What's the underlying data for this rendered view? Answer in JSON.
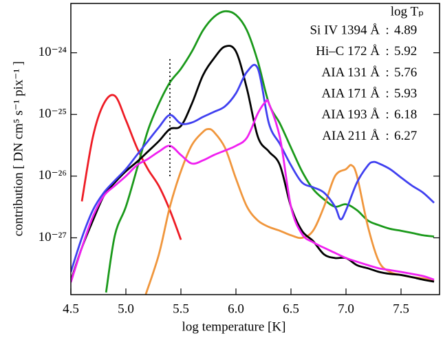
{
  "chart_data": {
    "type": "line",
    "x_label": "log temperature  [K]",
    "y_label": "contribution  [ DN cm⁵ s⁻¹ pix⁻¹ ]",
    "log_y": true,
    "xlim": [
      4.5,
      7.85
    ],
    "xticks": [
      {
        "value": 4.5,
        "label": "4.5"
      },
      {
        "value": 5,
        "label": "5.0"
      },
      {
        "value": 5.5,
        "label": "5.5"
      },
      {
        "value": 6,
        "label": "6.0"
      },
      {
        "value": 6.5,
        "label": "6.5"
      },
      {
        "value": 7,
        "label": "7.0"
      },
      {
        "value": 7.5,
        "label": "7.5"
      }
    ],
    "ylim": [
      1.2e-28,
      6.3e-24
    ],
    "yticks": [
      {
        "value": 1e-27,
        "label": "10⁻²⁷"
      },
      {
        "value": 1e-26,
        "label": "10⁻²⁶"
      },
      {
        "value": 1e-25,
        "label": "10⁻²⁵"
      },
      {
        "value": 1e-24,
        "label": "10⁻²⁴"
      }
    ],
    "legend_title": "log Tₚ",
    "legend_separator": ":",
    "legend_position": "upper right",
    "marker": {
      "x": 5.4,
      "y": [
        1e-26,
        8e-25
      ],
      "color": "#000"
    },
    "series": [
      {
        "name": "Si IV 1394 Å",
        "log_tp": 4.89,
        "color": "#ee1c25",
        "x": [
          4.6,
          4.7,
          4.8,
          4.9,
          5.0,
          5.1,
          5.2,
          5.3,
          5.4,
          5.5
        ],
        "values": [
          3.9e-27,
          4.3e-26,
          1.5e-25,
          2e-25,
          8.1e-26,
          2.9e-26,
          1.3e-26,
          6.9e-27,
          2.8e-27,
          9.3e-28
        ]
      },
      {
        "name": "Hi–C 172 Å",
        "log_tp": 5.92,
        "color": "#1a991a",
        "x": [
          4.82,
          4.9,
          5.0,
          5.1,
          5.2,
          5.3,
          5.4,
          5.5,
          5.6,
          5.7,
          5.8,
          5.9,
          6.0,
          6.1,
          6.2,
          6.3,
          6.4,
          6.5,
          6.6,
          6.7,
          6.8,
          6.9,
          7.0,
          7.1,
          7.2,
          7.3,
          7.4,
          7.5,
          7.6,
          7.7,
          7.8
        ],
        "values": [
          1.3e-28,
          1.1e-27,
          3.2e-27,
          1.3e-26,
          5.5e-26,
          1.5e-25,
          3.3e-25,
          5.5e-25,
          1.05e-24,
          2.3e-24,
          3.8e-24,
          4.7e-24,
          4.1e-24,
          2.3e-24,
          7.1e-25,
          1.5e-25,
          7.1e-26,
          2.9e-26,
          1.2e-26,
          6.2e-27,
          4.2e-27,
          3.2e-27,
          3.5e-27,
          2.8e-27,
          1.9e-27,
          1.6e-27,
          1.4e-27,
          1.3e-27,
          1.2e-27,
          1.1e-27,
          1.05e-27
        ]
      },
      {
        "name": "AIA 131 Å",
        "log_tp": 5.76,
        "color": "#f0963c",
        "x": [
          5.18,
          5.3,
          5.4,
          5.5,
          5.6,
          5.7,
          5.75,
          5.8,
          5.9,
          6.0,
          6.1,
          6.2,
          6.3,
          6.4,
          6.5,
          6.6,
          6.7,
          6.8,
          6.9,
          7.0,
          7.05,
          7.1,
          7.2,
          7.3,
          7.4,
          7.5,
          7.6,
          7.7,
          7.8
        ],
        "values": [
          1.2e-28,
          5.4e-28,
          3.2e-27,
          1.2e-26,
          3.2e-26,
          5.2e-26,
          5.8e-26,
          5.2e-26,
          2.9e-26,
          9.1e-27,
          3.2e-27,
          1.9e-27,
          1.5e-27,
          1.3e-27,
          1.1e-27,
          1e-27,
          1.3e-27,
          3.2e-27,
          1e-26,
          1.3e-26,
          1.5e-26,
          1e-26,
          1.5e-27,
          4.1e-28,
          2.8e-28,
          2.5e-28,
          2.3e-28,
          2.2e-28,
          2e-28
        ]
      },
      {
        "name": "AIA 171 Å",
        "log_tp": 5.93,
        "color": "#000000",
        "x": [
          4.5,
          4.6,
          4.7,
          4.8,
          4.9,
          5.0,
          5.1,
          5.2,
          5.3,
          5.4,
          5.5,
          5.6,
          5.7,
          5.8,
          5.9,
          6.0,
          6.1,
          6.2,
          6.3,
          6.4,
          6.5,
          6.6,
          6.7,
          6.8,
          6.9,
          7.0,
          7.1,
          7.2,
          7.3,
          7.4,
          7.5,
          7.6,
          7.7,
          7.8
        ],
        "values": [
          2e-28,
          6.9e-28,
          1.9e-27,
          4.8e-27,
          7.9e-27,
          1.2e-26,
          1.7e-26,
          2.5e-26,
          3.7e-26,
          5.8e-26,
          6.5e-26,
          1.5e-25,
          4.3e-25,
          8.1e-25,
          1.26e-24,
          1.05e-24,
          2.6e-25,
          4.3e-26,
          2.5e-26,
          1.5e-26,
          3.2e-27,
          1.3e-27,
          8.9e-28,
          5.4e-28,
          4.7e-28,
          4.7e-28,
          3.6e-28,
          3.2e-28,
          2.8e-28,
          2.6e-28,
          2.5e-28,
          2.3e-28,
          2.1e-28,
          1.95e-28
        ]
      },
      {
        "name": "AIA 193 Å",
        "log_tp": 6.18,
        "color": "#4040f0",
        "x": [
          4.5,
          4.6,
          4.7,
          4.8,
          4.9,
          5.0,
          5.1,
          5.2,
          5.3,
          5.4,
          5.5,
          5.6,
          5.7,
          5.8,
          5.9,
          6.0,
          6.1,
          6.2,
          6.3,
          6.4,
          6.5,
          6.6,
          6.7,
          6.8,
          6.9,
          6.95,
          7.0,
          7.1,
          7.2,
          7.25,
          7.3,
          7.4,
          7.5,
          7.6,
          7.7,
          7.8
        ],
        "values": [
          2.8e-28,
          1e-27,
          2.8e-27,
          5.4e-27,
          8.5e-27,
          1.3e-26,
          2.2e-26,
          3.7e-26,
          6.2e-26,
          9.8e-26,
          7.1e-26,
          7.4e-26,
          9.1e-26,
          1.1e-25,
          1.35e-25,
          2.2e-25,
          4.9e-25,
          5.5e-25,
          7.1e-26,
          3.3e-26,
          1.5e-26,
          7.9e-27,
          6.6e-27,
          5.4e-27,
          3.2e-27,
          2e-27,
          2.8e-27,
          7.9e-27,
          1.5e-26,
          1.7e-26,
          1.6e-26,
          1.3e-26,
          9.5e-27,
          7e-27,
          5.4e-27,
          3.7e-27
        ]
      },
      {
        "name": "AIA 211 Å",
        "log_tp": 6.27,
        "color": "#f020f0",
        "x": [
          4.5,
          4.6,
          4.7,
          4.8,
          4.9,
          5.0,
          5.1,
          5.2,
          5.3,
          5.4,
          5.5,
          5.6,
          5.7,
          5.8,
          5.9,
          6.0,
          6.1,
          6.2,
          6.27,
          6.3,
          6.4,
          6.5,
          6.6,
          6.7,
          6.8,
          6.9,
          7.0,
          7.1,
          7.2,
          7.3,
          7.4,
          7.5,
          7.6,
          7.7,
          7.8
        ],
        "values": [
          1.9e-28,
          6.9e-28,
          2.2e-27,
          4.8e-27,
          7e-27,
          1e-26,
          1.5e-26,
          1.9e-26,
          2.5e-26,
          3.1e-26,
          2.2e-26,
          1.6e-26,
          1.8e-26,
          2.2e-26,
          2.6e-26,
          3.1e-26,
          4.2e-26,
          1.05e-25,
          1.6e-25,
          1.5e-25,
          4.2e-26,
          3.2e-27,
          1.15e-27,
          8.5e-28,
          6.9e-28,
          5.7e-28,
          4.7e-28,
          4.1e-28,
          3.6e-28,
          3.2e-28,
          3e-28,
          2.8e-28,
          2.6e-28,
          2.4e-28,
          2.1e-28
        ]
      }
    ]
  }
}
